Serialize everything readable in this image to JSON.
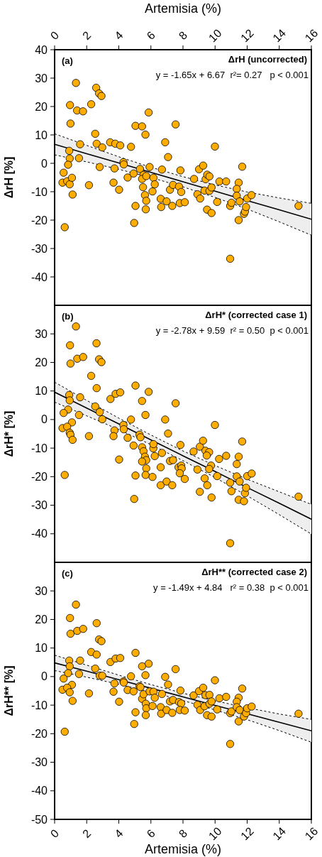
{
  "chart_data": [
    {
      "type": "scatter",
      "title": "ΔrH (uncorrected)",
      "ylabel": "ΔrH [%]",
      "xlabel": "Artemisia (%)",
      "xlim": [
        0,
        16
      ],
      "xticks": [
        0,
        2,
        4,
        6,
        8,
        10,
        12,
        14,
        16
      ],
      "ylim": [
        -50,
        40
      ],
      "yticks": [
        -40,
        -30,
        -20,
        -10,
        0,
        10,
        20,
        30,
        40
      ],
      "grid": false,
      "legend": false,
      "annotations": [
        "(a)",
        "y = -1.65x + 6.67  r²= 0.27   p < 0.001"
      ],
      "series": [
        {
          "type": "scatter",
          "marker": "circle",
          "color": "#ffad00",
          "x": [
            1.33,
            2.59,
            2.77,
            2.92,
            0.96,
            2.28,
            1.4,
            1.77,
            0.99,
            5.86,
            5.04,
            5.45,
            5.66,
            7.54,
            2.53,
            2.62,
            2.97,
            1.59,
            3.46,
            3.78,
            4.09,
            4.76,
            6.89,
            9.99,
            0.91,
            0.94,
            1.52,
            0.84,
            0.56,
            0.49,
            0.78,
            0.94,
            1.08,
            1.12,
            0.63,
            2.81,
            2.14,
            3.73,
            3.67,
            4.02,
            4.29,
            4.31,
            4.55,
            4.92,
            5.32,
            5.54,
            5.45,
            5.71,
            5.51,
            5.63,
            5.71,
            5.68,
            5.92,
            6.16,
            6.24,
            6.1,
            5.04,
            4.96,
            6.69,
            7.07,
            6.61,
            6.64,
            6.98,
            7.19,
            7.33,
            7.38,
            7.75,
            7.84,
            7.89,
            7.8,
            8.11,
            8.69,
            8.9,
            9.07,
            9.0,
            9.26,
            9.41,
            9.51,
            9.65,
            9.34,
            9.65,
            9.78,
            9.5,
            9.78,
            10.13,
            10.27,
            10.69,
            10.94,
            11.02,
            10.94,
            11.47,
            11.35,
            11.35,
            11.53,
            11.47,
            11.69,
            11.8,
            11.86,
            11.93,
            12.0,
            12.27,
            15.2
          ],
          "values": [
            28.3,
            26.6,
            24.6,
            23.7,
            20.5,
            20.8,
            18.6,
            18.3,
            14.0,
            17.9,
            13.2,
            13.0,
            10.1,
            13.7,
            10.4,
            6.9,
            5.6,
            6.7,
            7.4,
            6.9,
            6.3,
            5.8,
            7.4,
            5.9,
            4.4,
            1.7,
            1.8,
            -0.5,
            -3.3,
            -6.8,
            -6.3,
            -7.4,
            -5.1,
            -11.0,
            -22.5,
            -1.3,
            -7.7,
            -1.8,
            -6.8,
            -9.3,
            0.4,
            -0.4,
            -5.0,
            -3.6,
            -2.0,
            -4.1,
            -5.5,
            -4.5,
            -8.4,
            -11.2,
            -13.2,
            -16.2,
            -1.3,
            -5.1,
            -7.4,
            -9.9,
            -15.0,
            -21.0,
            -2.2,
            2.2,
            -12.5,
            -15.4,
            -13.4,
            -9.3,
            -15.0,
            -7.6,
            -8.2,
            -2.5,
            -10.1,
            -14.0,
            -13.7,
            -5.5,
            -10.9,
            -12.4,
            -2.1,
            -0.8,
            -5.6,
            -4.0,
            -4.6,
            -9.6,
            -9.7,
            -8.5,
            -16.3,
            -17.5,
            -13.6,
            -6.4,
            -6.4,
            -15.0,
            -13.9,
            -33.6,
            -6.8,
            -9.0,
            -11.4,
            -13.4,
            -20.0,
            -1.2,
            -17.8,
            -17.0,
            -15.4,
            -12.4,
            -11.2,
            -15.0
          ]
        },
        {
          "type": "line",
          "color": "#000000",
          "line_style": "solid",
          "x": [
            0,
            2,
            4,
            6,
            8,
            10,
            12,
            14,
            16
          ],
          "values": [
            6.7,
            3.4,
            0.1,
            -3.2,
            -6.5,
            -9.8,
            -13.1,
            -16.4,
            -19.7
          ],
          "lower": [
            3.0,
            0.5,
            -2.1,
            -5.0,
            -8.3,
            -12.0,
            -16.1,
            -20.6,
            -25.3
          ],
          "upper": [
            10.4,
            6.3,
            2.3,
            -1.4,
            -4.7,
            -7.6,
            -10.1,
            -12.2,
            -14.1
          ]
        },
        {
          "type": "line",
          "color": "#000000",
          "line_style": "dashed",
          "x": [
            0,
            2,
            4,
            6,
            8,
            10,
            12,
            14,
            16
          ],
          "values": [
            3.0,
            0.5,
            -2.1,
            -5.0,
            -8.3,
            -12.0,
            -16.1,
            -20.6,
            -25.3
          ]
        },
        {
          "type": "line",
          "color": "#000000",
          "line_style": "dashed",
          "x": [
            0,
            2,
            4,
            6,
            8,
            10,
            12,
            14,
            16
          ],
          "values": [
            10.4,
            6.3,
            2.3,
            -1.4,
            -4.7,
            -7.6,
            -10.1,
            -12.2,
            -14.1
          ]
        }
      ]
    },
    {
      "type": "scatter",
      "title": "ΔrH* (corrected case 1)",
      "ylabel": "ΔrH* [%]",
      "xlim": [
        0,
        16
      ],
      "xticks": [
        0,
        2,
        4,
        6,
        8,
        10,
        12,
        14,
        16
      ],
      "tick_labels": "y",
      "ylim": [
        -50,
        40
      ],
      "yticks": [
        -40,
        -30,
        -20,
        -10,
        0,
        10,
        20,
        30
      ],
      "grid": false,
      "legend": false,
      "annotations": [
        "(b)",
        "y = -2.78x + 9.59  r² = 0.50  p < 0.001"
      ],
      "series": [
        {
          "type": "scatter",
          "marker": "circle",
          "color": "#ffad00",
          "x": [
            1.33,
            0.96,
            2.61,
            0.99,
            1.41,
            1.78,
            2.77,
            2.92,
            2.28,
            2.62,
            5.04,
            5.86,
            3.48,
            3.8,
            4.09,
            0.91,
            0.94,
            1.59,
            5.45,
            7.54,
            2.53,
            2.81,
            2.97,
            0.84,
            0.56,
            1.52,
            5.66,
            4.76,
            6.89,
            1.08,
            0.49,
            0.78,
            0.94,
            0.99,
            1.12,
            2.14,
            0.63,
            3.73,
            3.67,
            4.29,
            4.31,
            4.55,
            4.92,
            4.02,
            5.29,
            5.35,
            7.07,
            9.99,
            11.69,
            5.45,
            5.54,
            6.15,
            6.16,
            5.63,
            5.71,
            5.45,
            5.71,
            5.67,
            6.24,
            6.69,
            6.1,
            5.04,
            4.96,
            6.61,
            6.61,
            6.98,
            7.19,
            7.38,
            7.33,
            7.84,
            7.72,
            7.89,
            7.92,
            7.8,
            8.11,
            8.66,
            8.9,
            9.05,
            9.25,
            9.4,
            9.63,
            9.48,
            9.75,
            9.63,
            9.35,
            9.51,
            9.05,
            9.78,
            10.13,
            10.25,
            10.69,
            10.94,
            11.02,
            11.35,
            11.35,
            11.47,
            11.53,
            11.47,
            11.8,
            11.86,
            11.93,
            12.0,
            12.28,
            15.2,
            10.94
          ],
          "values": [
            32.6,
            26.0,
            26.7,
            19.6,
            21.3,
            21.9,
            21.1,
            20.1,
            15.3,
            11.0,
            11.9,
            9.7,
            7.2,
            9.0,
            9.5,
            8.6,
            6.7,
            7.8,
            6.5,
            5.7,
            4.6,
            2.6,
            0.1,
            3.5,
            2.3,
            1.6,
            1.6,
            0.0,
            0.0,
            -1.0,
            -3.0,
            -2.5,
            -4.6,
            -5.3,
            -7.1,
            -5.8,
            -19.4,
            -3.8,
            -5.8,
            -1.9,
            -3.4,
            -6.4,
            -9.1,
            -14.0,
            -5.3,
            -6.2,
            -4.9,
            -1.9,
            -7.7,
            -9.7,
            -11.1,
            -10.1,
            -8.6,
            -13.0,
            -14.2,
            -14.7,
            -17.1,
            -19.4,
            -12.8,
            -11.7,
            -20.1,
            -19.6,
            -27.8,
            -16.7,
            -23.0,
            -21.7,
            -14.5,
            -14.2,
            -23.0,
            -8.9,
            -16.7,
            -16.1,
            -17.1,
            -18.8,
            -20.8,
            -11.2,
            -17.5,
            -9.5,
            -7.4,
            -10.9,
            -11.4,
            -12.6,
            -16.1,
            -17.3,
            -20.6,
            -23.0,
            -25.3,
            -27.3,
            -19.8,
            -13.8,
            -12.7,
            -22.1,
            -25.1,
            -19.9,
            -15.6,
            -13.0,
            -21.7,
            -28.1,
            -28.6,
            -25.8,
            -23.9,
            -19.8,
            -18.9,
            -27.0,
            -43.3
          ]
        },
        {
          "type": "line",
          "color": "#000000",
          "line_style": "solid",
          "x": [
            0,
            2,
            4,
            6,
            8,
            10,
            12,
            14,
            16
          ],
          "values": [
            9.6,
            4.0,
            -1.5,
            -7.1,
            -12.7,
            -18.2,
            -23.8,
            -29.3,
            -34.9
          ],
          "lower": [
            6.1,
            1.3,
            -3.5,
            -8.8,
            -14.4,
            -20.3,
            -26.7,
            -33.3,
            -40.1
          ],
          "upper": [
            13.1,
            6.7,
            0.5,
            -5.4,
            -11.0,
            -16.1,
            -20.9,
            -25.3,
            -29.7
          ]
        },
        {
          "type": "line",
          "color": "#000000",
          "line_style": "dashed",
          "x": [
            0,
            2,
            4,
            6,
            8,
            10,
            12,
            14,
            16
          ],
          "values": [
            6.1,
            1.3,
            -3.5,
            -8.8,
            -14.4,
            -20.3,
            -26.7,
            -33.3,
            -40.1
          ]
        },
        {
          "type": "line",
          "color": "#000000",
          "line_style": "dashed",
          "x": [
            0,
            2,
            4,
            6,
            8,
            10,
            12,
            14,
            16
          ],
          "values": [
            13.1,
            6.7,
            0.5,
            -5.4,
            -11.0,
            -16.1,
            -20.9,
            -25.3,
            -29.7
          ]
        }
      ]
    },
    {
      "type": "scatter",
      "title": "ΔrH** (corrected case 2)",
      "ylabel": "ΔrH** [%]",
      "xlabel": "Artemisia (%)",
      "xlim": [
        0,
        16
      ],
      "xticks": [
        0,
        2,
        4,
        6,
        8,
        10,
        12,
        14,
        16
      ],
      "ylim": [
        -50,
        40
      ],
      "yticks": [
        -50,
        -40,
        -30,
        -20,
        -10,
        0,
        10,
        20,
        30
      ],
      "grid": false,
      "legend": false,
      "annotations": [
        "(c)",
        "y = -1.49x + 4.84   r² = 0.38  p < 0.001"
      ],
      "series": [
        {
          "type": "scatter",
          "marker": "circle",
          "color": "#ffad00",
          "x": [
            1.33,
            0.96,
            0.99,
            1.41,
            1.78,
            2.62,
            2.77,
            2.92,
            2.28,
            2.62,
            5.04,
            5.86,
            3.48,
            3.8,
            4.09,
            0.91,
            0.94,
            1.59,
            5.45,
            7.54,
            2.53,
            2.81,
            2.97,
            0.84,
            0.56,
            1.52,
            5.66,
            4.76,
            6.89,
            9.99,
            1.08,
            0.49,
            0.78,
            0.94,
            1.12,
            2.14,
            0.63,
            3.73,
            3.67,
            4.29,
            4.31,
            4.55,
            4.92,
            4.02,
            5.29,
            5.35,
            7.07,
            11.69,
            5.45,
            5.54,
            5.68,
            5.71,
            5.68,
            5.92,
            6.16,
            6.24,
            6.1,
            5.04,
            4.96,
            6.69,
            6.61,
            6.64,
            6.98,
            7.19,
            7.38,
            7.33,
            7.84,
            7.75,
            7.89,
            7.8,
            8.11,
            8.66,
            8.9,
            9.07,
            9.0,
            9.26,
            9.4,
            9.65,
            9.34,
            9.65,
            9.78,
            9.5,
            9.78,
            10.13,
            10.27,
            10.69,
            10.94,
            11.02,
            10.94,
            11.47,
            11.35,
            11.35,
            11.53,
            11.47,
            11.8,
            11.93,
            12.0,
            12.28,
            15.2
          ],
          "values": [
            25.2,
            20.5,
            15.0,
            16.0,
            16.7,
            18.7,
            13.0,
            12.4,
            8.6,
            7.7,
            8.3,
            4.5,
            5.1,
            6.3,
            6.5,
            5.6,
            3.6,
            5.6,
            3.6,
            2.6,
            2.8,
            0.3,
            0.3,
            1.2,
            -0.7,
            0.9,
            0.5,
            0.1,
            -0.1,
            -1.3,
            -2.9,
            -4.6,
            -3.9,
            -5.5,
            -8.5,
            -5.9,
            -19.3,
            -2.4,
            -5.3,
            -1.7,
            -2.1,
            -4.7,
            -5.2,
            -8.8,
            -3.4,
            -3.7,
            -2.8,
            -4.2,
            -7.8,
            -6.2,
            -9.5,
            -11.1,
            -13.5,
            -5.2,
            -5.3,
            -7.4,
            -10.3,
            -12.5,
            -16.6,
            -6.1,
            -10.7,
            -13.0,
            -11.7,
            -8.7,
            -8.2,
            -12.7,
            -4.9,
            -8.9,
            -9.4,
            -11.7,
            -11.9,
            -6.6,
            -9.9,
            -11.7,
            -5.1,
            -3.9,
            -6.5,
            -6.4,
            -10.4,
            -9.5,
            -8.7,
            -13.5,
            -14.0,
            -11.5,
            -7.6,
            -7.1,
            -12.8,
            -12.2,
            -23.6,
            -7.4,
            -8.8,
            -10.7,
            -11.7,
            -15.7,
            -14.0,
            -12.8,
            -11.1,
            -10.5,
            -13.0
          ]
        },
        {
          "type": "line",
          "color": "#000000",
          "line_style": "solid",
          "x": [
            0,
            2,
            4,
            6,
            8,
            10,
            12,
            14,
            16
          ],
          "values": [
            4.8,
            1.9,
            -1.1,
            -4.1,
            -7.1,
            -10.1,
            -13.0,
            -16.0,
            -19.0
          ],
          "lower": [
            2.1,
            -0.2,
            -2.7,
            -5.4,
            -8.4,
            -11.7,
            -15.1,
            -18.9,
            -23.0
          ],
          "upper": [
            7.5,
            4.0,
            0.5,
            -2.8,
            -5.8,
            -8.5,
            -10.9,
            -13.1,
            -15.0
          ]
        },
        {
          "type": "line",
          "color": "#000000",
          "line_style": "dashed",
          "x": [
            0,
            2,
            4,
            6,
            8,
            10,
            12,
            14,
            16
          ],
          "values": [
            2.1,
            -0.2,
            -2.7,
            -5.4,
            -8.4,
            -11.7,
            -15.1,
            -18.9,
            -23.0
          ]
        },
        {
          "type": "line",
          "color": "#000000",
          "line_style": "dashed",
          "x": [
            0,
            2,
            4,
            6,
            8,
            10,
            12,
            14,
            16
          ],
          "values": [
            7.5,
            4.0,
            0.5,
            -2.8,
            -5.8,
            -8.5,
            -10.9,
            -13.1,
            -15.0
          ]
        }
      ]
    }
  ]
}
